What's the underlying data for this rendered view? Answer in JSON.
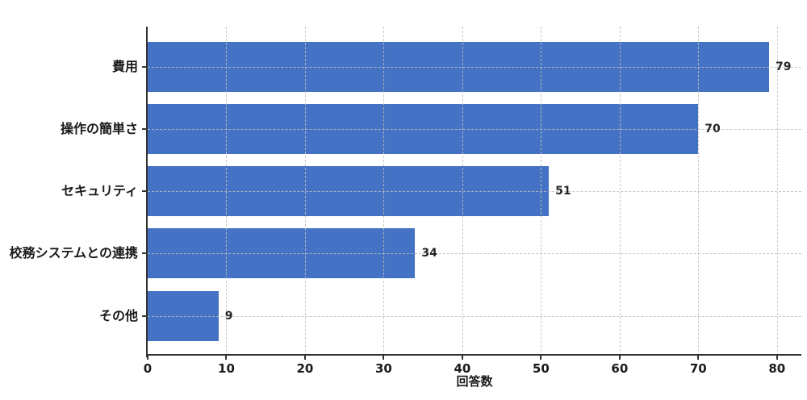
{
  "chart_data": {
    "type": "bar",
    "orientation": "horizontal",
    "title": "",
    "categories": [
      "費用",
      "操作の簡単さ",
      "セキュリティ",
      "校務システムとの連携",
      "その他"
    ],
    "values": [
      79,
      70,
      51,
      34,
      9
    ],
    "value_labels": [
      "79",
      "70",
      "51",
      "34",
      "9"
    ],
    "xlabel": "回答数",
    "ylabel": "",
    "x_ticks": [
      0,
      10,
      20,
      30,
      40,
      50,
      60,
      70,
      80
    ],
    "xlim": [
      0,
      83.1
    ],
    "grid": true,
    "grid_style": "dashed",
    "legend_position": "none",
    "colors": {
      "bar": "#4472c4",
      "grid": "#bebebe",
      "axis": "#333333",
      "text": "#1a1a1a",
      "background": "#ffffff"
    }
  }
}
